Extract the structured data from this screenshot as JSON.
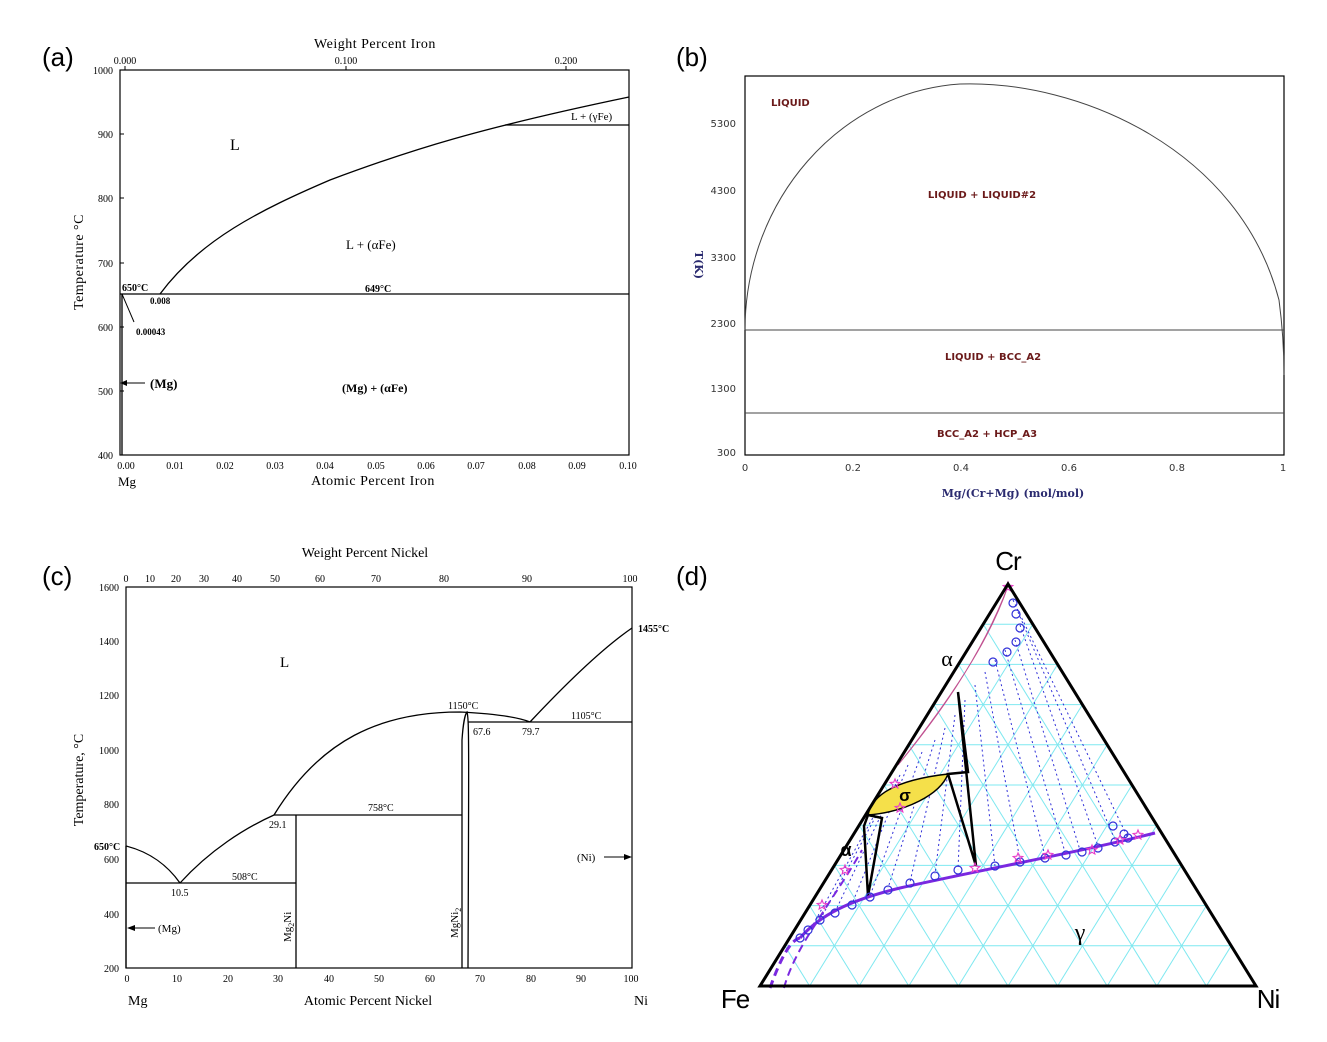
{
  "panels": {
    "a": {
      "letter": "(a)",
      "top_axis_title": "Weight Percent Iron",
      "top_ticks": [
        "0.000",
        "0.100",
        "0.200"
      ],
      "bottom_axis_title": "Atomic Percent Iron",
      "x_ticks": [
        "0.00",
        "0.01",
        "0.02",
        "0.03",
        "0.04",
        "0.05",
        "0.06",
        "0.07",
        "0.08",
        "0.09",
        "0.10"
      ],
      "y_ticks": [
        "400",
        "500",
        "600",
        "700",
        "800",
        "900",
        "1000"
      ],
      "y_label": "Temperature °C",
      "left_element": "Mg",
      "phase_L": "L",
      "phase_L_gFe": "L + (γFe)",
      "phase_L_aFe": "L + (αFe)",
      "phase_Mg_label": "(Mg)",
      "phase_Mg_aFe": "(Mg)  +  (αFe)",
      "ann_650": "650°C",
      "ann_0008": "0.008",
      "ann_649": "649°C",
      "ann_000043": "0.00043"
    },
    "b": {
      "letter": "(b)",
      "x_label": "Mg/(Cr+Mg) (mol/mol)",
      "y_label": "T(K)",
      "x_ticks": [
        "0",
        "0.2",
        "0.4",
        "0.6",
        "0.8",
        "1"
      ],
      "y_ticks": [
        "300",
        "1300",
        "2300",
        "3300",
        "4300",
        "5300"
      ],
      "phase_liquid": "LIQUID",
      "phase_misc": "LIQUID + LIQUID#2",
      "phase_liq_bcc": "LIQUID + BCC_A2",
      "phase_bcc_hcp": "BCC_A2 + HCP_A3"
    },
    "c": {
      "letter": "(c)",
      "top_axis_title": "Weight Percent Nickel",
      "top_ticks": [
        "0",
        "10",
        "20",
        "30",
        "40",
        "50",
        "60",
        "70",
        "80",
        "90",
        "100"
      ],
      "bottom_axis_title": "Atomic Percent Nickel",
      "x_ticks": [
        "0",
        "10",
        "20",
        "30",
        "40",
        "50",
        "60",
        "70",
        "80",
        "90",
        "100"
      ],
      "y_ticks": [
        "200",
        "400",
        "600",
        "800",
        "1000",
        "1200",
        "1400",
        "1600"
      ],
      "y_label": "Temperature, °C",
      "left_element": "Mg",
      "right_element": "Ni",
      "phase_L": "L",
      "ann_650": "650°C",
      "ann_1455": "1455°C",
      "ann_1150": "1150°C",
      "ann_1105": "1105°C",
      "ann_758": "758°C",
      "ann_508": "508°C",
      "ann_291": "29.1",
      "ann_105": "10.5",
      "ann_676": "67.6",
      "ann_797": "79.7",
      "phase_Mg": "(Mg)",
      "phase_Ni": "(Ni)",
      "compound_1_base": "Mg",
      "compound_1_sub": "2",
      "compound_1_tail": "Ni",
      "compound_2_base": "MgNi",
      "compound_2_sub": "2"
    },
    "d": {
      "letter": "(d)",
      "vertex_top": "Cr",
      "vertex_left": "Fe",
      "vertex_right": "Ni",
      "phase_alpha_top": "α",
      "phase_sigma": "σ",
      "phase_alpha_left": "α",
      "phase_gamma": "γ",
      "colors": {
        "grid": "#7fe8f0",
        "alpha_fill": "#f2a0c8",
        "sigma_fill": "#f5e04a",
        "boundary": "#7a28e0",
        "tie_lines": "#3030d8",
        "stars": "#e83cc8"
      }
    }
  }
}
